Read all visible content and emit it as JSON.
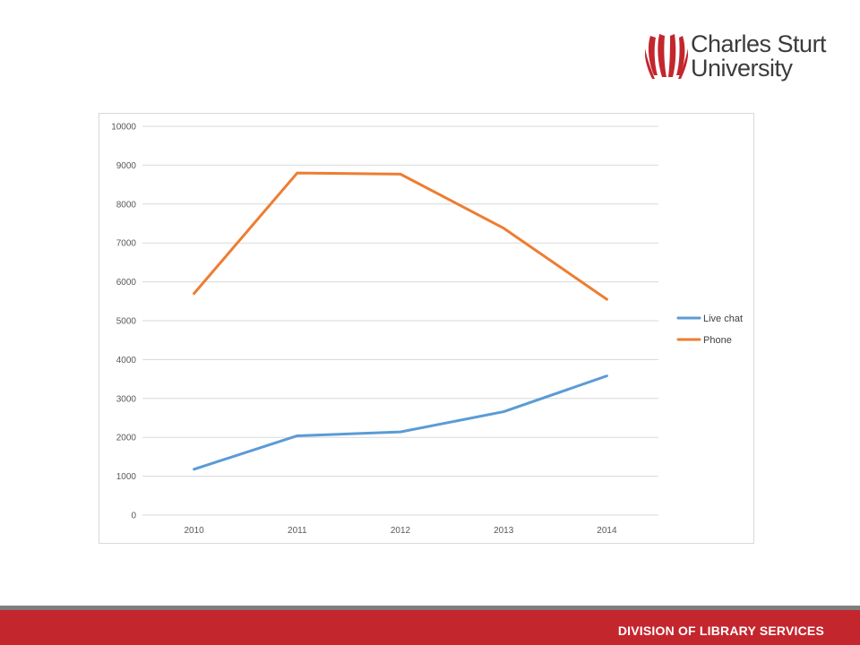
{
  "header": {
    "logo_line1": "Charles Sturt",
    "logo_line2": "University",
    "logo_icon": "csu-flame-icon",
    "logo_color": "#c4262e"
  },
  "footer": {
    "text": "DIVISION OF LIBRARY SERVICES",
    "bar_color": "#c4262e",
    "stripe_color": "#7f7f7f"
  },
  "chart_data": {
    "type": "line",
    "title": "",
    "xlabel": "",
    "ylabel": "",
    "categories": [
      "2010",
      "2011",
      "2012",
      "2013",
      "2014"
    ],
    "ylim": [
      0,
      10000
    ],
    "yticks": [
      0,
      1000,
      2000,
      3000,
      4000,
      5000,
      6000,
      7000,
      8000,
      9000,
      10000
    ],
    "grid": true,
    "legend_position": "right",
    "series": [
      {
        "name": "Live chat",
        "color": "#5b9bd5",
        "values": [
          1180,
          2040,
          2140,
          2660,
          3580
        ]
      },
      {
        "name": "Phone",
        "color": "#ed7d31",
        "values": [
          5700,
          8800,
          8770,
          7380,
          5550
        ]
      }
    ]
  }
}
